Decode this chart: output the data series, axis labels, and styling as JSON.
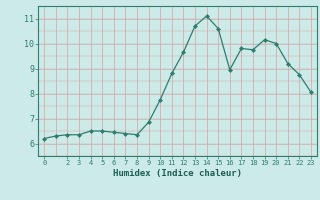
{
  "x": [
    0,
    1,
    2,
    3,
    4,
    5,
    6,
    7,
    8,
    9,
    10,
    11,
    12,
    13,
    14,
    15,
    16,
    17,
    18,
    19,
    20,
    21,
    22,
    23
  ],
  "y": [
    6.2,
    6.3,
    6.35,
    6.35,
    6.5,
    6.5,
    6.45,
    6.4,
    6.35,
    6.85,
    7.75,
    8.8,
    9.65,
    10.7,
    11.1,
    10.6,
    8.95,
    9.8,
    9.75,
    10.15,
    10.0,
    9.2,
    8.75,
    8.05
  ],
  "xlabel": "Humidex (Indice chaleur)",
  "ylim": [
    5.5,
    11.5
  ],
  "xlim": [
    -0.5,
    23.5
  ],
  "yticks": [
    6,
    7,
    8,
    9,
    10,
    11
  ],
  "xticks": [
    0,
    2,
    3,
    4,
    5,
    6,
    7,
    8,
    9,
    10,
    11,
    12,
    13,
    14,
    15,
    16,
    17,
    18,
    19,
    20,
    21,
    22,
    23
  ],
  "line_color": "#2e7d6e",
  "marker": "D",
  "marker_size": 2.0,
  "bg_color": "#cceae7",
  "grid_color_v": "#d8a0a0",
  "grid_color_h": "#c8b8b8",
  "axis_color": "#2e7d6e",
  "tick_color": "#2e7d6e",
  "xlabel_color": "#1a5f52",
  "title": ""
}
